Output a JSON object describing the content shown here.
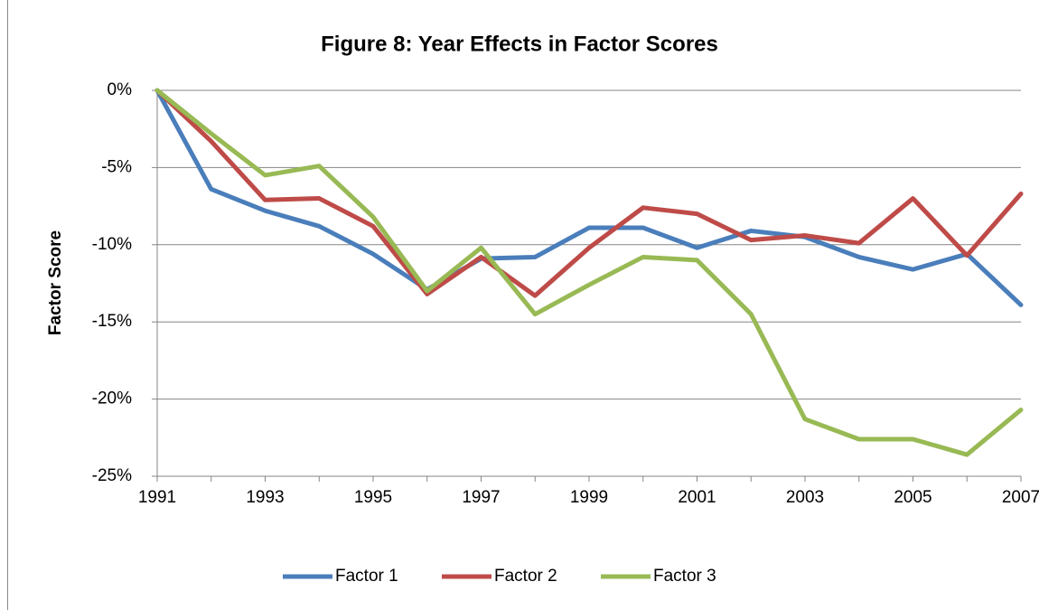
{
  "chart_data": {
    "type": "line",
    "title": "Figure 8: Year Effects in Factor Scores",
    "y_label": "Factor Score",
    "categories": [
      "1991",
      null,
      "1993",
      null,
      "1995",
      null,
      "1997",
      null,
      "1999",
      null,
      "2001",
      null,
      "2003",
      null,
      "2005",
      null,
      "2007"
    ],
    "series": [
      {
        "name": "Factor 1",
        "color": "#4a7ebb",
        "values": [
          0,
          -6.4,
          -7.8,
          -8.8,
          -10.6,
          -12.9,
          -10.9,
          -10.8,
          -8.9,
          -8.9,
          -10.2,
          -9.1,
          -9.5,
          -10.8,
          -11.6,
          -10.6,
          -13.9
        ]
      },
      {
        "name": "Factor 2",
        "color": "#be4b48",
        "values": [
          0,
          -3.3,
          -7.1,
          -7.0,
          -8.8,
          -13.2,
          -10.8,
          -13.3,
          -10.2,
          -7.6,
          -8.0,
          -9.7,
          -9.4,
          -9.9,
          -7.0,
          -10.7,
          -6.7
        ]
      },
      {
        "name": "Factor 3",
        "color": "#98b954",
        "values": [
          0,
          -2.8,
          -5.5,
          -4.9,
          -8.2,
          -13.0,
          -10.2,
          -14.5,
          -12.6,
          -10.8,
          -11.0,
          -14.5,
          -21.3,
          -22.6,
          -22.6,
          -23.6,
          -20.7
        ]
      }
    ],
    "ylim": [
      -25,
      0
    ],
    "yticks": [
      {
        "value": -25,
        "label": "-25%"
      },
      {
        "value": -20,
        "label": "-20%"
      },
      {
        "value": -15,
        "label": "-15%"
      },
      {
        "value": -10,
        "label": "-10%"
      },
      {
        "value": -5,
        "label": "-5%"
      },
      {
        "value": 0,
        "label": "0%"
      }
    ],
    "grid": true,
    "legend": "bottom"
  }
}
